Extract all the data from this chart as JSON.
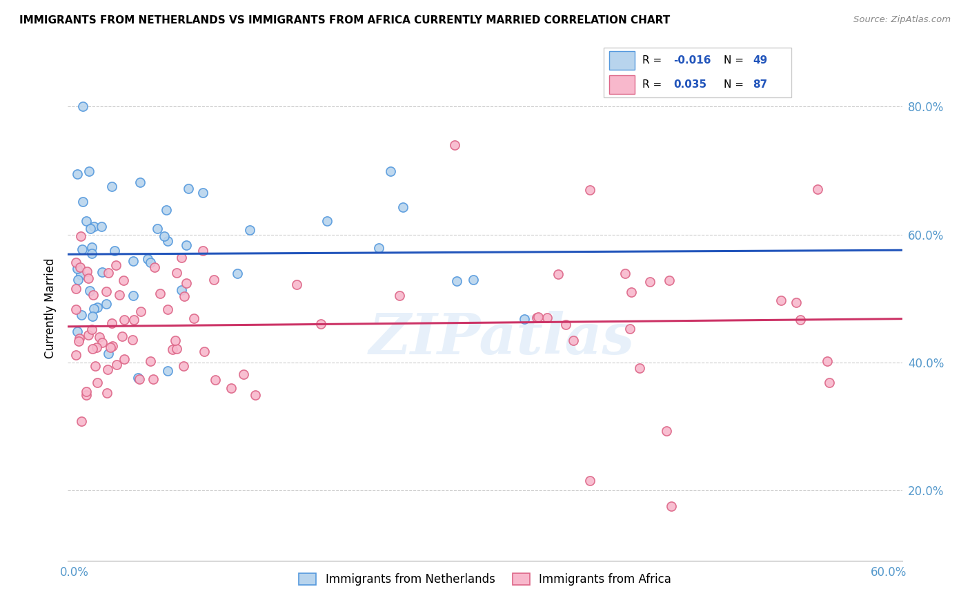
{
  "title": "IMMIGRANTS FROM NETHERLANDS VS IMMIGRANTS FROM AFRICA CURRENTLY MARRIED CORRELATION CHART",
  "source": "Source: ZipAtlas.com",
  "ylabel": "Currently Married",
  "xlim": [
    -0.005,
    0.61
  ],
  "ylim": [
    0.09,
    0.88
  ],
  "y_ticks": [
    0.2,
    0.4,
    0.6,
    0.8
  ],
  "y_tick_labels": [
    "20.0%",
    "40.0%",
    "60.0%",
    "80.0%"
  ],
  "x_ticks": [
    0.0,
    0.1,
    0.2,
    0.3,
    0.4,
    0.5,
    0.6
  ],
  "legend_R_netherlands": "-0.016",
  "legend_N_netherlands": "49",
  "legend_R_africa": "0.035",
  "legend_N_africa": "87",
  "netherlands_face_color": "#b8d4ed",
  "netherlands_edge_color": "#5599dd",
  "africa_face_color": "#f8b8cc",
  "africa_edge_color": "#dd6688",
  "netherlands_line_color": "#2255bb",
  "africa_line_color": "#cc3366",
  "tick_color": "#5599cc",
  "watermark": "ZIPatlas",
  "nl_intercept": 0.565,
  "nl_slope": -0.05,
  "af_intercept": 0.435,
  "af_slope": 0.09
}
